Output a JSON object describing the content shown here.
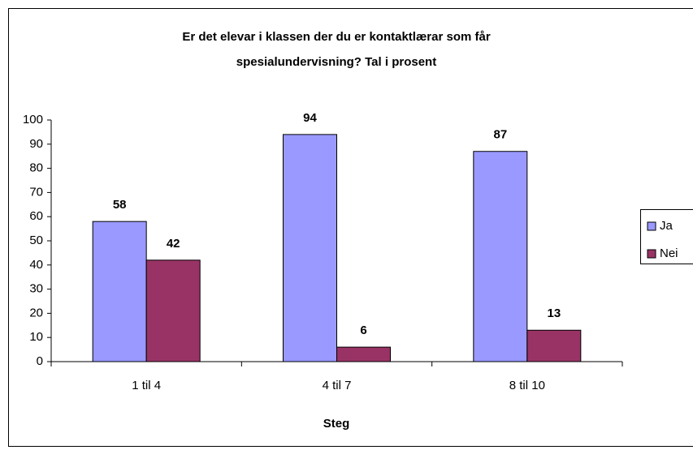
{
  "chart_data": {
    "type": "bar",
    "title": [
      "Er det elevar i klassen der du er kontaktlærar som får",
      "spesialundervisning?   Tal i prosent"
    ],
    "x_label": "Steg",
    "categories": [
      "1 til 4",
      "4 til 7",
      "8 til 10"
    ],
    "series": [
      {
        "name": "Ja",
        "color": "#9999ff",
        "values": [
          58,
          94,
          87
        ]
      },
      {
        "name": "Nei",
        "color": "#993366",
        "values": [
          42,
          6,
          13
        ]
      }
    ],
    "ylim": [
      0,
      100
    ],
    "yticks": [
      0,
      10,
      20,
      30,
      40,
      50,
      60,
      70,
      80,
      90,
      100
    ],
    "grid": false,
    "legend": "right"
  }
}
